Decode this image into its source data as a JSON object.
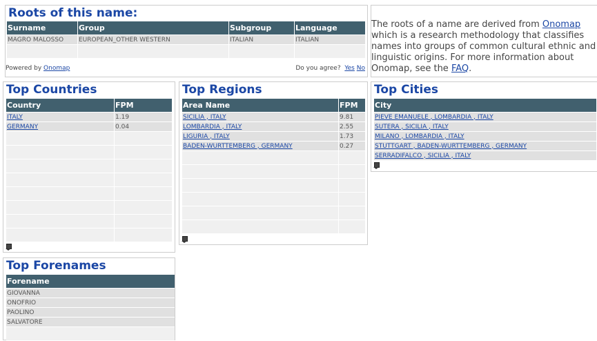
{
  "roots": {
    "title": "Roots of this name:",
    "headers": [
      "Surname",
      "Group",
      "Subgroup",
      "Language"
    ],
    "row": [
      "MAGRO MALOSSO",
      "EUROPEAN_OTHER WESTERN",
      "ITALIAN",
      "ITALIAN"
    ],
    "powered_by": "Powered by",
    "powered_link": "Onomap",
    "agree": "Do you agree?",
    "yes": "Yes",
    "no": "No"
  },
  "info": {
    "t1": "The roots of a name are derived from ",
    "link1": "Onomap",
    "t2": " which is a research methodology that classifies names into groups of common cultural ethnic and linguistic origins. For more information about Onomap, see the ",
    "link2": "FAQ",
    "t3": "."
  },
  "countries": {
    "title": "Top Countries",
    "headers": [
      "Country",
      "FPM"
    ],
    "rows": [
      [
        "ITALY",
        "1.19"
      ],
      [
        "GERMANY",
        "0.04"
      ]
    ]
  },
  "regions": {
    "title": "Top Regions",
    "headers": [
      "Area Name",
      "FPM"
    ],
    "rows": [
      [
        "SICILIA , ITALY",
        "9.81"
      ],
      [
        "LOMBARDIA , ITALY",
        "2.55"
      ],
      [
        "LIGURIA , ITALY",
        "1.73"
      ],
      [
        "BADEN-WURTTEMBERG , GERMANY",
        "0.27"
      ]
    ]
  },
  "cities": {
    "title": "Top Cities",
    "headers": [
      "City"
    ],
    "rows": [
      "PIEVE EMANUELE , LOMBARDIA , ITALY",
      "SUTERA , SICILIA , ITALY",
      "MILANO , LOMBARDIA , ITALY",
      "STUTTGART , BADEN-WURTTEMBERG , GERMANY",
      "SERRADIFALCO , SICILIA , ITALY"
    ]
  },
  "forenames": {
    "title": "Top Forenames",
    "headers": [
      "Forename"
    ],
    "rows": [
      "GIOVANNA",
      "ONOFRIO",
      "PAOLINO",
      "SALVATORE"
    ]
  },
  "colors": {
    "header": "#41606e",
    "title": "#1b47a5",
    "row": "#e0e0e0",
    "empty_row": "#f0f0f0"
  }
}
